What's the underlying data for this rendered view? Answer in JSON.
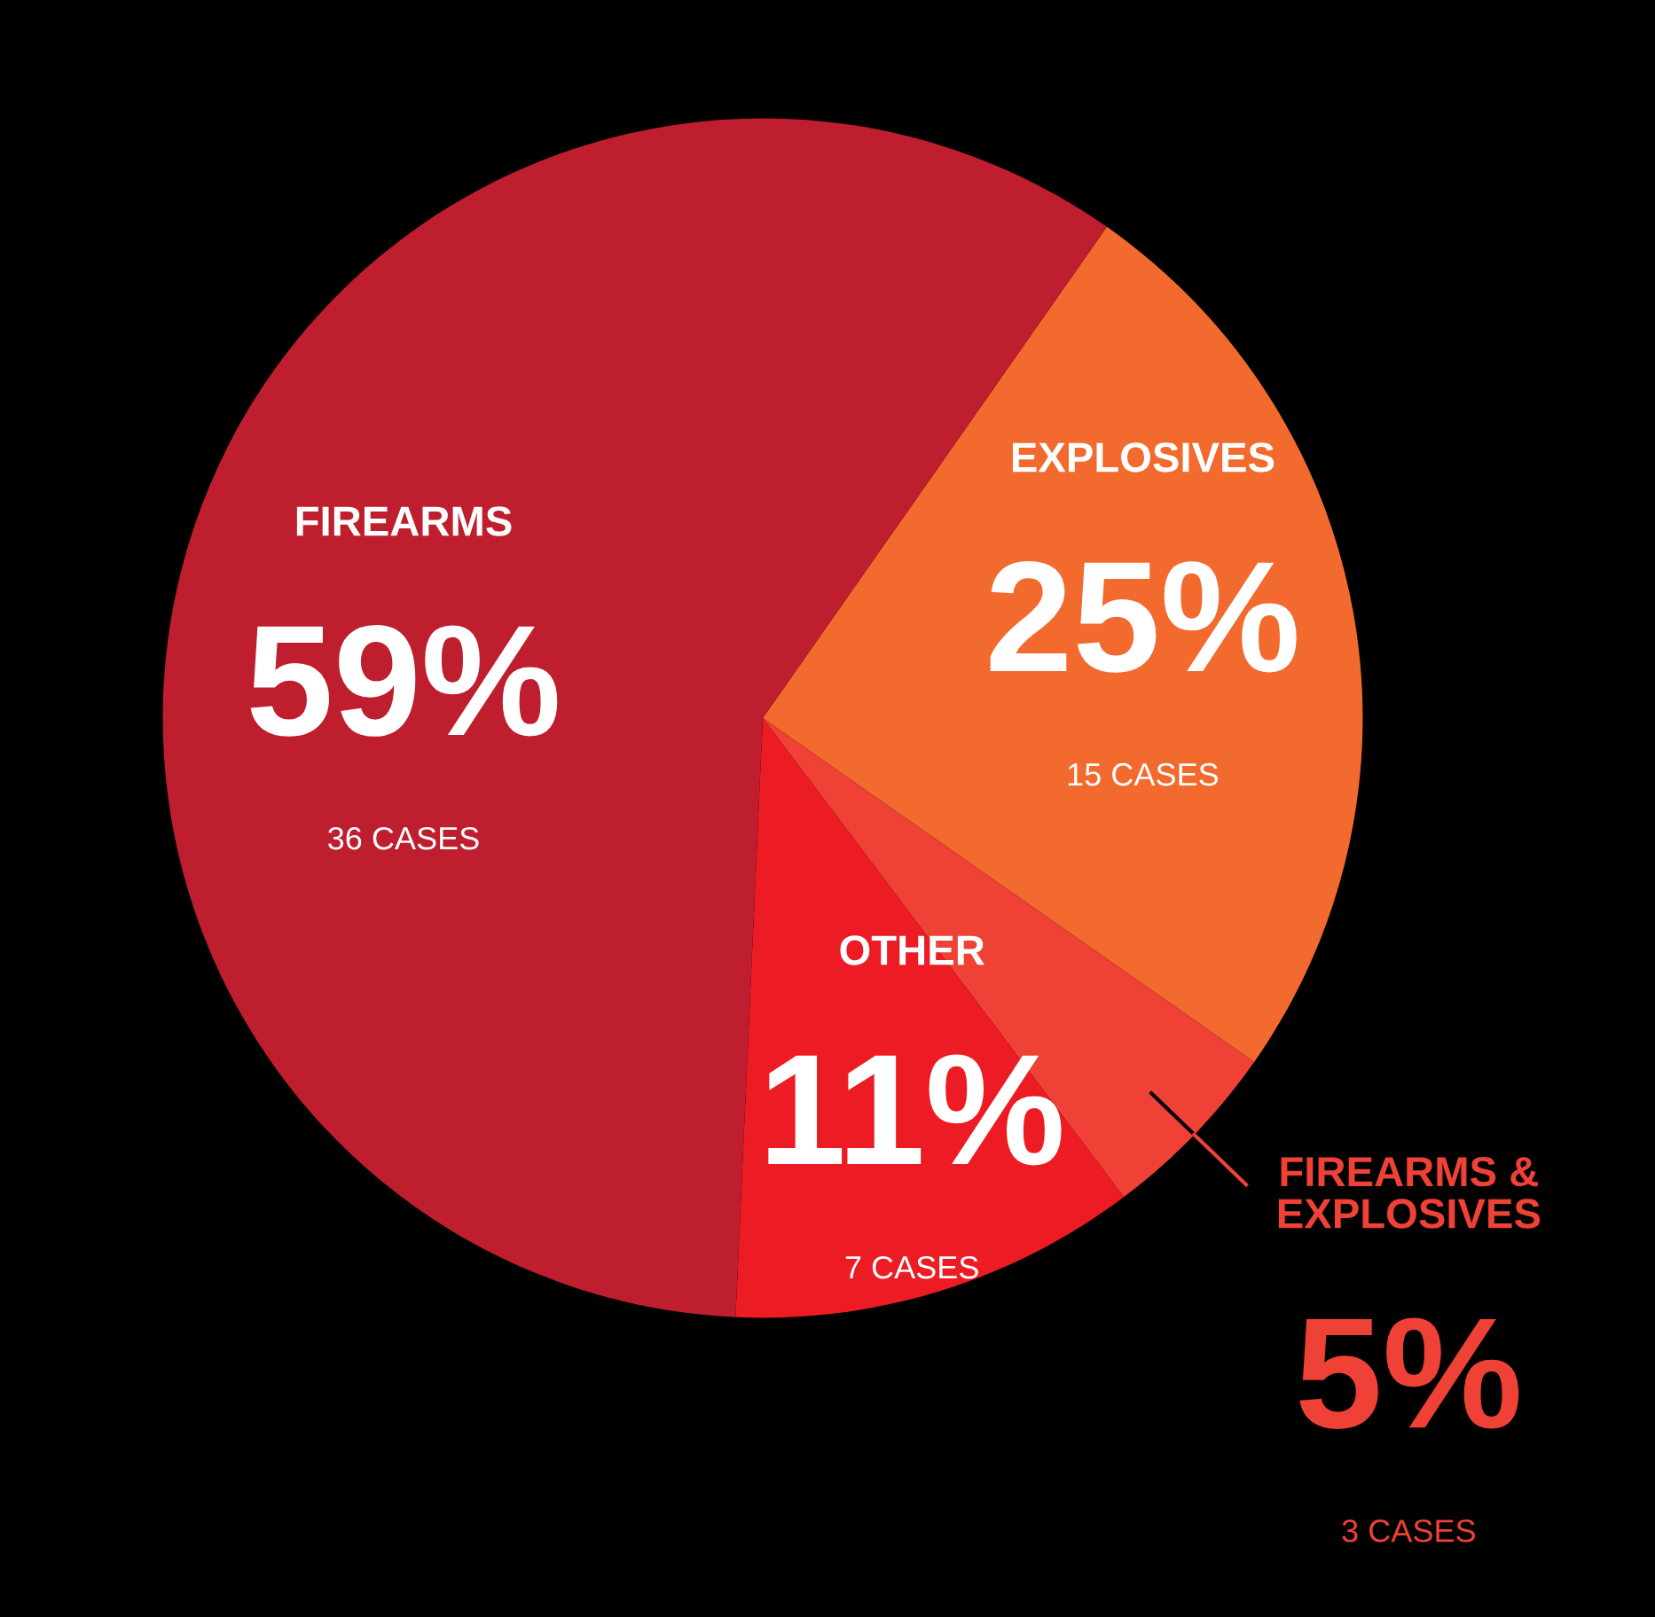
{
  "chart_data": {
    "type": "pie",
    "categories": [
      "EXPLOSIVES",
      "FIREARMS & EXPLOSIVES",
      "OTHER",
      "FIREARMS"
    ],
    "values": [
      25,
      5,
      11,
      59
    ],
    "value_labels": [
      "25%",
      "5%",
      "11%",
      "59%"
    ],
    "colors": [
      "#f26a2e",
      "#ef4136",
      "#ed1c24",
      "#be1e2d"
    ],
    "annotations": [
      "15 CASES",
      "3 CASES",
      "7 CASES",
      "36 CASES"
    ]
  }
}
